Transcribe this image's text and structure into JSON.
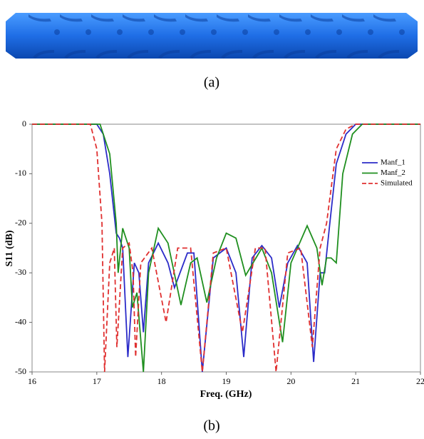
{
  "figure": {
    "panel_labels": [
      "(a)",
      "(b)"
    ]
  },
  "chart_data": {
    "type": "line",
    "xlabel": "Freq. (GHz)",
    "ylabel": "S11 (dB)",
    "xlim": [
      16,
      22
    ],
    "ylim": [
      -50,
      0
    ],
    "xticks": [
      16,
      17,
      18,
      19,
      20,
      21,
      22
    ],
    "yticks": [
      0,
      -10,
      -20,
      -30,
      -40,
      -50
    ],
    "legend": "upper right",
    "series": [
      {
        "name": "Manf_1",
        "color": "#2b2bc8",
        "style": "solid",
        "x": [
          16,
          17.0,
          17.1,
          17.2,
          17.3,
          17.35,
          17.4,
          17.48,
          17.58,
          17.65,
          17.72,
          17.8,
          17.95,
          18.1,
          18.2,
          18.4,
          18.5,
          18.63,
          18.8,
          19.0,
          19.15,
          19.27,
          19.4,
          19.55,
          19.7,
          19.82,
          19.95,
          20.1,
          20.25,
          20.35,
          20.45,
          20.52,
          20.6,
          20.7,
          20.85,
          21.0,
          22
        ],
        "values": [
          0,
          0,
          -2,
          -10,
          -22,
          -23,
          -25,
          -47,
          -28,
          -30,
          -42,
          -28,
          -24,
          -28,
          -33,
          -26,
          -26,
          -50,
          -27,
          -25,
          -30,
          -47,
          -27,
          -24.5,
          -27,
          -37,
          -28,
          -24.5,
          -28,
          -48,
          -30,
          -30,
          -20,
          -8,
          -2,
          0,
          0
        ]
      },
      {
        "name": "Manf_2",
        "color": "#1f8f1f",
        "style": "solid",
        "x": [
          16,
          17.05,
          17.2,
          17.3,
          17.33,
          17.4,
          17.5,
          17.55,
          17.62,
          17.72,
          17.8,
          17.95,
          18.1,
          18.3,
          18.45,
          18.55,
          18.7,
          18.85,
          19.0,
          19.15,
          19.3,
          19.55,
          19.7,
          19.87,
          20.0,
          20.25,
          20.4,
          20.48,
          20.55,
          20.62,
          20.7,
          20.8,
          20.95,
          21.1,
          22
        ],
        "values": [
          0,
          0,
          -6,
          -20,
          -30,
          -21,
          -25,
          -37,
          -34,
          -50,
          -30,
          -21,
          -24,
          -36.5,
          -28,
          -27,
          -36,
          -27,
          -22,
          -23,
          -30.5,
          -25,
          -30,
          -44,
          -28,
          -20.5,
          -25,
          -32.5,
          -27,
          -27,
          -28,
          -10,
          -2,
          0,
          0
        ]
      },
      {
        "name": "Simulated",
        "color": "#e03030",
        "style": "dashed",
        "x": [
          16,
          16.9,
          17.0,
          17.08,
          17.12,
          17.2,
          17.27,
          17.31,
          17.4,
          17.5,
          17.56,
          17.6,
          17.68,
          17.85,
          18.07,
          18.25,
          18.45,
          18.63,
          18.8,
          19.0,
          19.25,
          19.45,
          19.6,
          19.77,
          19.95,
          20.15,
          20.33,
          20.45,
          20.55,
          20.7,
          20.85,
          21.0,
          22
        ],
        "values": [
          0,
          0,
          -5,
          -20,
          -50,
          -28,
          -25,
          -45,
          -25,
          -24,
          -30,
          -47,
          -28,
          -25,
          -40,
          -25,
          -25,
          -50,
          -26,
          -25,
          -42,
          -25,
          -25,
          -50,
          -26,
          -25,
          -45,
          -25,
          -20,
          -5,
          -1,
          0,
          0
        ]
      }
    ]
  }
}
